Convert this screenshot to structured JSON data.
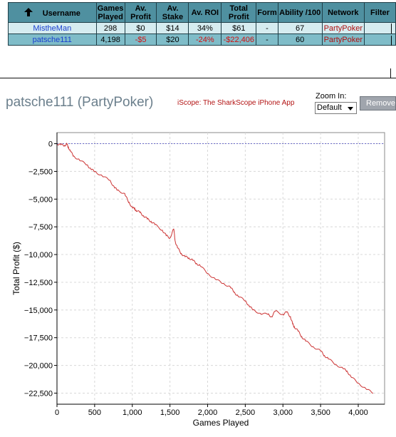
{
  "table": {
    "headers": [
      "Username",
      "Games Played",
      "Av. Profit",
      "Av. Stake",
      "Av. ROI",
      "Total Profit",
      "Form",
      "Ability /100",
      "Network",
      "Filter"
    ],
    "header_lines": [
      [
        "Username"
      ],
      [
        "Games",
        "Played"
      ],
      [
        "Av.",
        "Profit"
      ],
      [
        "Av.",
        "Stake"
      ],
      [
        "Av. ROI"
      ],
      [
        "Total",
        "Profit"
      ],
      [
        "Form"
      ],
      [
        "Ability /100"
      ],
      [
        "Network"
      ],
      [
        "Filter"
      ]
    ],
    "rows": [
      {
        "username": "MistheMan",
        "games_played": "298",
        "av_profit": "$0",
        "av_stake": "$14",
        "av_roi": "34%",
        "total_profit": "$61",
        "form": "-",
        "ability": "67",
        "network": "PartyPoker",
        "filter": ""
      },
      {
        "username": "patsche111",
        "games_played": "4,198",
        "av_profit": "-$5",
        "av_stake": "$20",
        "av_roi": "-24%",
        "total_profit": "-$22,406",
        "form": "-",
        "ability": "60",
        "network": "PartyPoker",
        "filter": ""
      }
    ]
  },
  "chart_header": {
    "title": "patsche111 (PartyPoker)",
    "iscope_link": "iScope: The SharkScope iPhone App",
    "zoom_label": "Zoom In:",
    "zoom_value": "Default",
    "remove_label": "Remove"
  },
  "colors": {
    "header_bg": "#4f90a0",
    "row1_bg": "#d6ecf0",
    "row2_bg": "#7fbcc8",
    "line": "#cc3333",
    "negative_text": "#d21010",
    "link_blue": "#1a3fd0"
  },
  "chart_data": {
    "type": "line",
    "xlabel": "Games Played",
    "ylabel": "Total Profit ($)",
    "xlim": [
      0,
      4350
    ],
    "ylim": [
      -23500,
      1000
    ],
    "x_ticks": [
      0,
      500,
      1000,
      1500,
      2000,
      2500,
      3000,
      3500,
      4000
    ],
    "x_tick_labels": [
      "0",
      "500",
      "1,000",
      "1,500",
      "2,000",
      "2,500",
      "3,000",
      "3,500",
      "4,000"
    ],
    "y_ticks": [
      0,
      -2500,
      -5000,
      -7500,
      -10000,
      -12500,
      -15000,
      -17500,
      -20000,
      -22500
    ],
    "y_tick_labels": [
      "0",
      "−2,500",
      "−5,000",
      "−7,500",
      "−10,000",
      "−12,500",
      "−15,000",
      "−17,500",
      "−20,000",
      "−22,500"
    ],
    "grid": true,
    "zero_line": true,
    "series": [
      {
        "x": [
          0,
          50,
          100,
          130,
          150,
          180,
          220,
          300,
          400,
          450,
          500,
          600,
          700,
          760,
          800,
          900,
          950,
          1000,
          1030,
          1050,
          1100,
          1150,
          1200,
          1250,
          1300,
          1400,
          1450,
          1500,
          1550,
          1570,
          1600,
          1650,
          1700,
          1750,
          1800,
          1850,
          1900,
          2000,
          2100,
          2200,
          2300,
          2350,
          2400,
          2500,
          2550,
          2600,
          2700,
          2800,
          2850,
          2900,
          3000,
          3050,
          3100,
          3130,
          3150,
          3200,
          3250,
          3300,
          3400,
          3500,
          3550,
          3600,
          3700,
          3800,
          3850,
          3900,
          4000,
          4100,
          4198
        ],
        "y": [
          0,
          -100,
          -150,
          -50,
          -300,
          -700,
          -1100,
          -1500,
          -1900,
          -2300,
          -2500,
          -2900,
          -3300,
          -3900,
          -4200,
          -4500,
          -5300,
          -5700,
          -5900,
          -6000,
          -6200,
          -6500,
          -6800,
          -7000,
          -7300,
          -7800,
          -8300,
          -8500,
          -7700,
          -8800,
          -9400,
          -9900,
          -10200,
          -10300,
          -10500,
          -10800,
          -11000,
          -11700,
          -12200,
          -12600,
          -12900,
          -13400,
          -13700,
          -14200,
          -14600,
          -15000,
          -15300,
          -15400,
          -15600,
          -15100,
          -15400,
          -15200,
          -15600,
          -16300,
          -16500,
          -16900,
          -17400,
          -17800,
          -18300,
          -18700,
          -19100,
          -19400,
          -19900,
          -20300,
          -20500,
          -21000,
          -21600,
          -22100,
          -22500
        ]
      }
    ]
  }
}
